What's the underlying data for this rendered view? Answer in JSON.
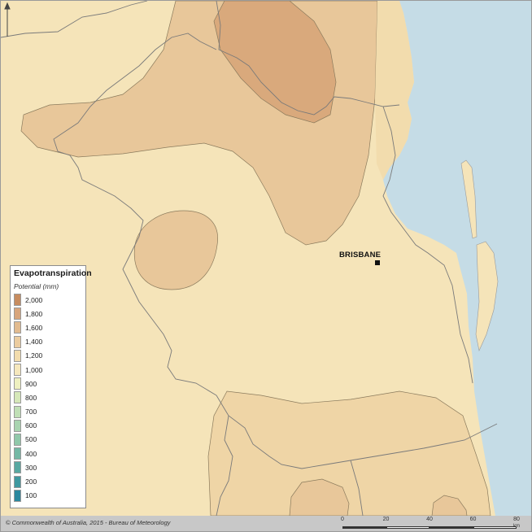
{
  "legend": {
    "title": "Evapotranspiration",
    "subtitle": "Potential (mm)",
    "items": [
      {
        "label": "2,000",
        "color": "#c78c5f"
      },
      {
        "label": "1,800",
        "color": "#d8a57c"
      },
      {
        "label": "1,600",
        "color": "#e2bb90"
      },
      {
        "label": "1,400",
        "color": "#ebcca0"
      },
      {
        "label": "1,200",
        "color": "#f2dcad"
      },
      {
        "label": "1,000",
        "color": "#f6e8bd"
      },
      {
        "label": "900",
        "color": "#eef0c0"
      },
      {
        "label": "800",
        "color": "#d6e8b9"
      },
      {
        "label": "700",
        "color": "#c0dfb6"
      },
      {
        "label": "600",
        "color": "#a9d4b0"
      },
      {
        "label": "500",
        "color": "#90c8aa"
      },
      {
        "label": "400",
        "color": "#74b8a5"
      },
      {
        "label": "300",
        "color": "#58a8a2"
      },
      {
        "label": "200",
        "color": "#3e98a0"
      },
      {
        "label": "100",
        "color": "#2a879e"
      }
    ]
  },
  "map": {
    "city": "BRISBANE",
    "ocean_color": "#c5dce6",
    "colors": {
      "c1000": "#f5e4b9",
      "c1200": "#efd5a6",
      "c1400": "#e8c79a",
      "c1600": "#d9a97c"
    }
  },
  "footer": {
    "copyright": "© Commonwealth of Australia, 2015 - Bureau of Meteorology",
    "scale_ticks": [
      "0",
      "20",
      "40",
      "60",
      "80"
    ],
    "scale_unit": "km"
  }
}
